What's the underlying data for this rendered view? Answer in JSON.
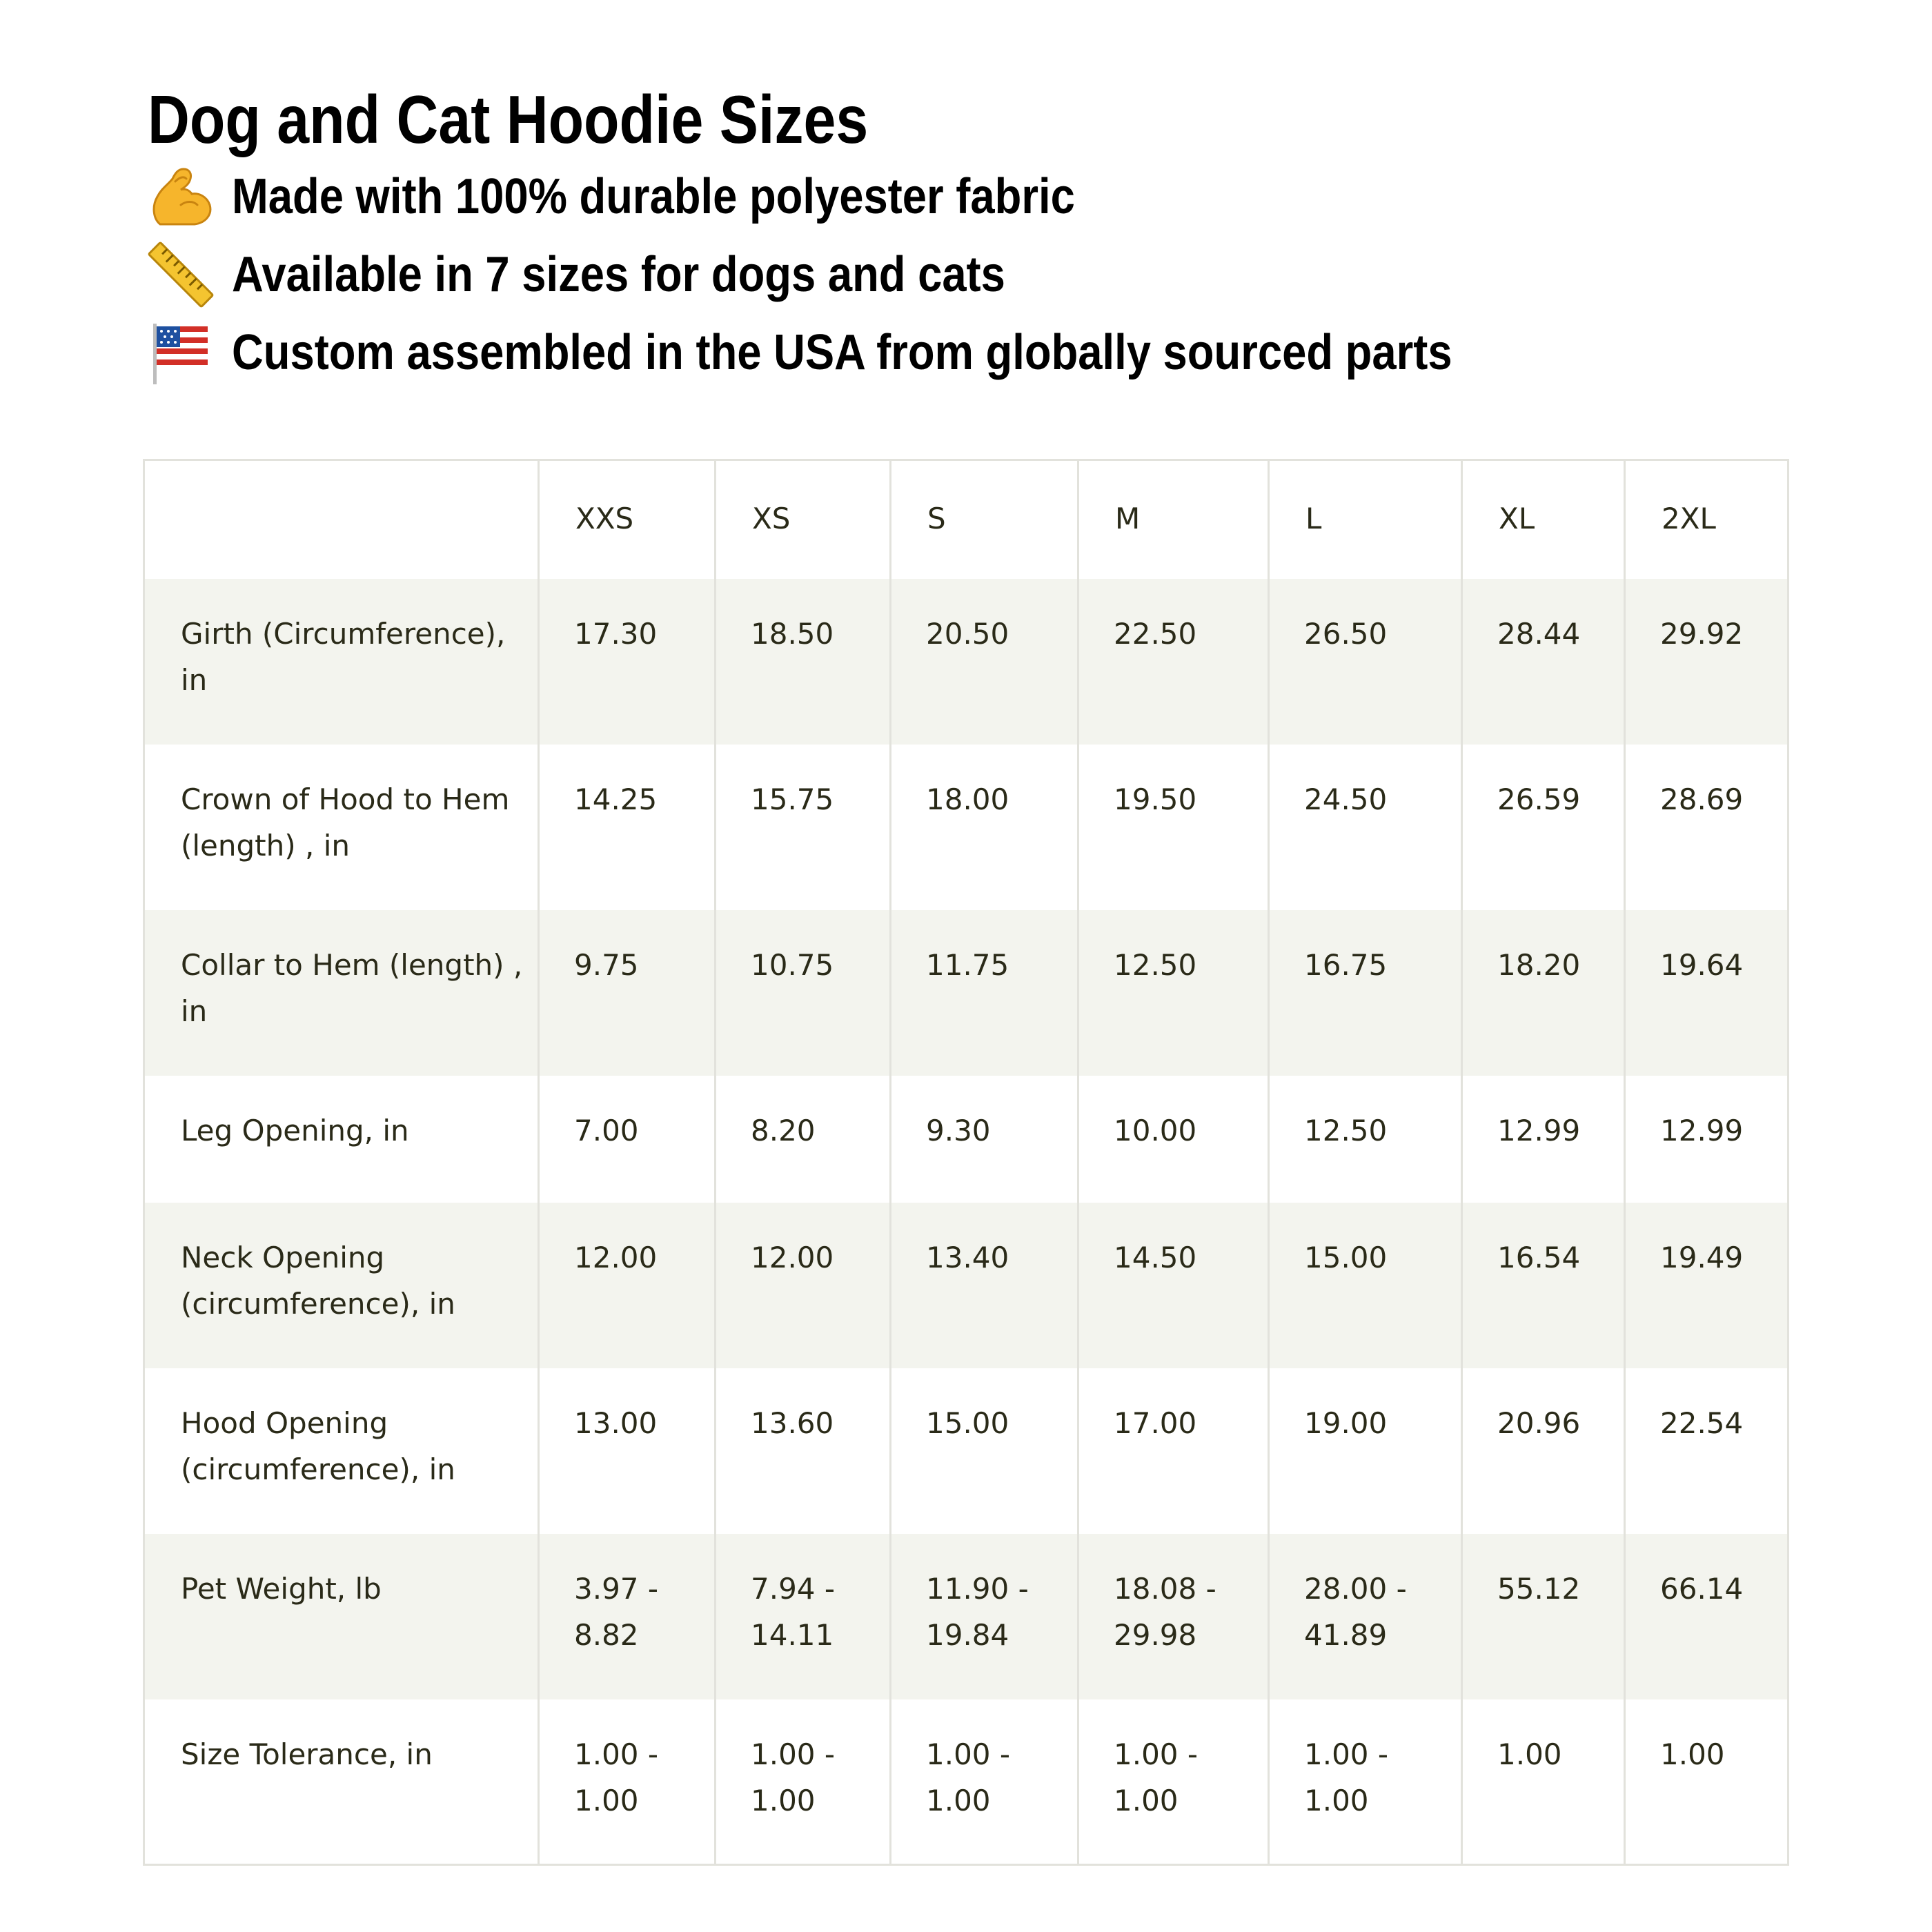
{
  "title": "Dog and Cat Hoodie Sizes",
  "bullets": [
    {
      "icon": "flexed-biceps-icon",
      "text": "Made with 100% durable polyester fabric"
    },
    {
      "icon": "ruler-icon",
      "text": "Available in 7 sizes for dogs and cats"
    },
    {
      "icon": "us-flag-icon",
      "text": "Custom assembled in the USA from globally sourced parts"
    }
  ],
  "table": {
    "corner": "",
    "sizes": [
      "XXS",
      "XS",
      "S",
      "M",
      "L",
      "XL",
      "2XL"
    ],
    "rows": [
      {
        "label": "Girth (Circumference), in",
        "values": [
          "17.30",
          "18.50",
          "20.50",
          "22.50",
          "26.50",
          "28.44",
          "29.92"
        ]
      },
      {
        "label": "Crown of Hood to Hem (length) , in",
        "values": [
          "14.25",
          "15.75",
          "18.00",
          "19.50",
          "24.50",
          "26.59",
          "28.69"
        ]
      },
      {
        "label": "Collar to Hem (length) , in",
        "values": [
          "9.75",
          "10.75",
          "11.75",
          "12.50",
          "16.75",
          "18.20",
          "19.64"
        ]
      },
      {
        "label": "Leg Opening, in",
        "values": [
          "7.00",
          "8.20",
          "9.30",
          "10.00",
          "12.50",
          "12.99",
          "12.99"
        ]
      },
      {
        "label": "Neck Opening (circumference), in",
        "values": [
          "12.00",
          "12.00",
          "13.40",
          "14.50",
          "15.00",
          "16.54",
          "19.49"
        ]
      },
      {
        "label": "Hood Opening (circumference), in",
        "values": [
          "13.00",
          "13.60",
          "15.00",
          "17.00",
          "19.00",
          "20.96",
          "22.54"
        ]
      },
      {
        "label": "Pet Weight, lb",
        "values": [
          "3.97 - 8.82",
          "7.94 - 14.11",
          "11.90 - 19.84",
          "18.08 - 29.98",
          "28.00 - 41.89",
          "55.12",
          "66.14"
        ]
      },
      {
        "label": "Size Tolerance, in",
        "values": [
          "1.00 - 1.00",
          "1.00 - 1.00",
          "1.00 - 1.00",
          "1.00 - 1.00",
          "1.00 - 1.00",
          "1.00",
          "1.00"
        ]
      }
    ]
  },
  "colors": {
    "stripe": "#f3f4ee",
    "border": "#e2e2dc",
    "table_text": "#2a2a18",
    "heading_text": "#000000"
  }
}
